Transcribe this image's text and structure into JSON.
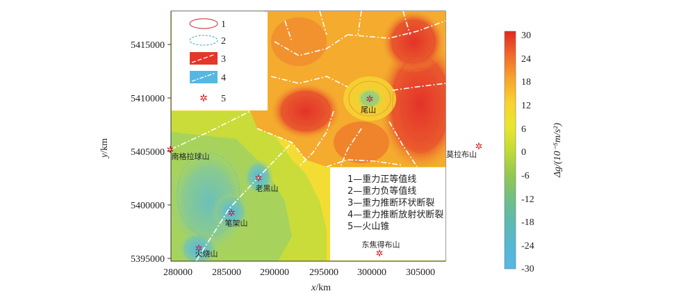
{
  "axes": {
    "x_label_var": "x",
    "x_label_unit": "/km",
    "y_label_var": "y",
    "y_label_unit": "/km",
    "x_ticks": [
      "280000",
      "285000",
      "290000",
      "295000",
      "300000",
      "305000"
    ],
    "y_ticks": [
      "5415000",
      "5410000",
      "5405000",
      "5400000",
      "5395000"
    ]
  },
  "colorbar": {
    "ticks": [
      "30",
      "24",
      "18",
      "12",
      "6",
      "0",
      "-6",
      "-12",
      "-18",
      "-24",
      "-30"
    ],
    "label": "Δg/(10⁻⁵m/s²)",
    "colors": [
      "#e02a22",
      "#f06a2a",
      "#f7a52c",
      "#f8d230",
      "#e9e72e",
      "#b8d63a",
      "#8cc65a",
      "#6cbf8a",
      "#5ab9b8",
      "#55b8d8",
      "#53b8e4"
    ]
  },
  "legend_symbols": [
    "1",
    "2",
    "3",
    "4",
    "5"
  ],
  "legend_text": [
    "1—重力正等值线",
    "2—重力负等值线",
    "3—重力推断环状断裂",
    "4—重力推断放射状断裂",
    "5—火山锥"
  ],
  "volcanoes": [
    {
      "name": "尾山",
      "x": 299500,
      "y": 5410000
    },
    {
      "name": "南格拉球山",
      "x": 280000,
      "y": 5405100
    },
    {
      "name": "莫拉布山",
      "x": 309500,
      "y": 5405500
    },
    {
      "name": "老黑山",
      "x": 288000,
      "y": 5402500
    },
    {
      "name": "笔架山",
      "x": 285500,
      "y": 5399000
    },
    {
      "name": "火烧山",
      "x": 282300,
      "y": 5396000
    },
    {
      "name": "东焦得布山",
      "x": 300200,
      "y": 5395600
    }
  ],
  "colors": {
    "positive_contour": "#d14a4a",
    "negative_contour": "#4fb6d8",
    "volcano_symbol": "#d02020",
    "fault_line": "#ffffff"
  }
}
